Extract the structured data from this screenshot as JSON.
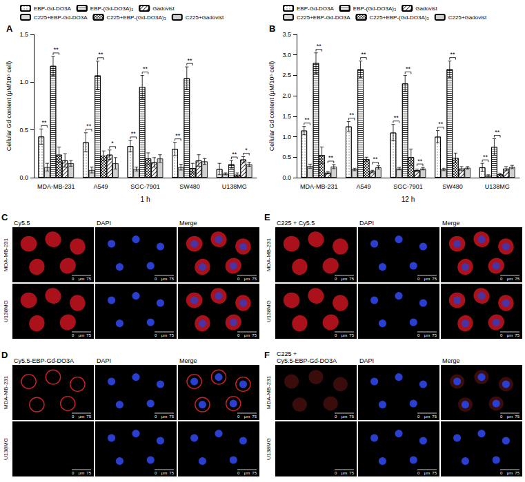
{
  "chart_data": [
    {
      "type": "bar",
      "label": "A",
      "x_label": "1 h",
      "y_label": "Cellular Gd content (μM/10⁶ cell)",
      "categories": [
        "MDA-MB-231",
        "A549",
        "SGC-7901",
        "SW480",
        "U138MG"
      ],
      "ylim": [
        0,
        1.5
      ],
      "yticks": [
        {
          "value": 0,
          "label": "0.0"
        },
        0.5,
        {
          "value": 1,
          "label": "1.0"
        },
        1.5
      ],
      "grid": false,
      "legend": "top",
      "series": [
        {
          "name": "EBP-Gd-DO3A",
          "color": "#ffffff",
          "values": [
            0.43,
            0.37,
            0.33,
            0.3,
            0.09
          ],
          "error": [
            0.08,
            0.1,
            0.06,
            0.07,
            0.06
          ]
        },
        {
          "name": "C225+EBP-Gd-DO3A",
          "color": "#d9d9d9",
          "values": [
            0.11,
            0.08,
            0.09,
            0.11,
            0.04
          ],
          "error": [
            0.04,
            0.03,
            0.02,
            0.03,
            0.01
          ]
        },
        {
          "name": "EBP-(Gd-DO3A)₃",
          "color": "#ffffff",
          "values": [
            1.17,
            1.07,
            0.95,
            1.04,
            0.14
          ],
          "error": [
            0.1,
            0.15,
            0.12,
            0.12,
            0.04
          ]
        },
        {
          "name": "C225+EBP-(Gd-DO3A)₃",
          "color": "#3a3a3a",
          "values": [
            0.24,
            0.23,
            0.2,
            0.1,
            0.03
          ],
          "error": [
            0.08,
            0.05,
            0.06,
            0.05,
            0.02
          ]
        },
        {
          "name": "Gadovist",
          "color": "#ffffff",
          "values": [
            0.18,
            0.24,
            0.16,
            0.18,
            0.19
          ],
          "error": [
            0.07,
            0.05,
            0.05,
            0.06,
            0.03
          ]
        },
        {
          "name": "C225+Gadovist",
          "color": "#d0d0d0",
          "values": [
            0.15,
            0.15,
            0.2,
            0.17,
            0.14
          ],
          "error": [
            0.03,
            0.06,
            0.04,
            0.03,
            0.02
          ]
        }
      ],
      "annotations": [
        {
          "text": "**",
          "category": "MDA-MB-231",
          "between": [
            "EBP-Gd-DO3A",
            "C225+EBP-Gd-DO3A"
          ]
        },
        {
          "text": "**",
          "category": "MDA-MB-231",
          "between": [
            "EBP-(Gd-DO3A)₃",
            "C225+EBP-(Gd-DO3A)₃"
          ]
        },
        {
          "text": "**",
          "category": "A549",
          "between": [
            "EBP-Gd-DO3A",
            "C225+EBP-Gd-DO3A"
          ]
        },
        {
          "text": "**",
          "category": "A549",
          "between": [
            "EBP-(Gd-DO3A)₃",
            "C225+EBP-(Gd-DO3A)₃"
          ]
        },
        {
          "text": "*",
          "category": "A549",
          "between": [
            "Gadovist",
            "C225+Gadovist"
          ]
        },
        {
          "text": "**",
          "category": "SGC-7901",
          "between": [
            "EBP-Gd-DO3A",
            "C225+EBP-Gd-DO3A"
          ]
        },
        {
          "text": "**",
          "category": "SGC-7901",
          "between": [
            "EBP-(Gd-DO3A)₃",
            "C225+EBP-(Gd-DO3A)₃"
          ]
        },
        {
          "text": "**",
          "category": "SW480",
          "between": [
            "EBP-Gd-DO3A",
            "C225+EBP-Gd-DO3A"
          ]
        },
        {
          "text": "**",
          "category": "SW480",
          "between": [
            "EBP-(Gd-DO3A)₃",
            "C225+EBP-(Gd-DO3A)₃"
          ]
        },
        {
          "text": "**",
          "category": "U138MG",
          "between": [
            "EBP-(Gd-DO3A)₃",
            "C225+EBP-(Gd-DO3A)₃"
          ]
        },
        {
          "text": "*",
          "category": "U138MG",
          "between": [
            "Gadovist",
            "C225+Gadovist"
          ]
        }
      ]
    },
    {
      "type": "bar",
      "label": "B",
      "x_label": "12 h",
      "y_label": "Cellular Gd content (μM/10⁶ cell)",
      "categories": [
        "MDA-MB-231",
        "A549",
        "SGC-7901",
        "SW480",
        "U138MG"
      ],
      "ylim": [
        0,
        3.5
      ],
      "yticks": [
        {
          "value": 0,
          "label": "0.0"
        },
        0.5,
        {
          "value": 1,
          "label": "1.0"
        },
        1.5,
        {
          "value": 2,
          "label": "2.0"
        },
        2.5,
        {
          "value": 3,
          "label": "3.0"
        },
        3.5
      ],
      "grid": false,
      "legend": "top",
      "series": [
        {
          "name": "EBP-Gd-DO3A",
          "color": "#ffffff",
          "values": [
            1.15,
            1.25,
            1.1,
            1.0,
            0.25
          ],
          "error": [
            0.1,
            0.12,
            0.2,
            0.15,
            0.1
          ]
        },
        {
          "name": "C225+EBP-Gd-DO3A",
          "color": "#d9d9d9",
          "values": [
            0.28,
            0.2,
            0.22,
            0.2,
            0.05
          ],
          "error": [
            0.05,
            0.03,
            0.03,
            0.03,
            0.02
          ]
        },
        {
          "name": "EBP-(Gd-DO3A)₃",
          "color": "#ffffff",
          "values": [
            2.8,
            2.65,
            2.3,
            2.65,
            0.75
          ],
          "error": [
            0.25,
            0.2,
            0.2,
            0.2,
            0.2
          ]
        },
        {
          "name": "C225+EBP-(Gd-DO3A)₃",
          "color": "#3a3a3a",
          "values": [
            0.55,
            0.45,
            0.5,
            0.48,
            0.08
          ],
          "error": [
            0.2,
            0.05,
            0.2,
            0.12,
            0.03
          ]
        },
        {
          "name": "Gadovist",
          "color": "#ffffff",
          "values": [
            0.12,
            0.15,
            0.18,
            0.22,
            0.22
          ],
          "error": [
            0.03,
            0.03,
            0.03,
            0.05,
            0.05
          ]
        },
        {
          "name": "C225+Gadovist",
          "color": "#d0d0d0",
          "values": [
            0.27,
            0.25,
            0.22,
            0.24,
            0.26
          ],
          "error": [
            0.05,
            0.04,
            0.03,
            0.03,
            0.04
          ]
        }
      ],
      "annotations": [
        {
          "text": "**",
          "category": "MDA-MB-231",
          "between": [
            "EBP-Gd-DO3A",
            "C225+EBP-Gd-DO3A"
          ]
        },
        {
          "text": "**",
          "category": "MDA-MB-231",
          "between": [
            "EBP-(Gd-DO3A)₃",
            "C225+EBP-(Gd-DO3A)₃"
          ]
        },
        {
          "text": "**",
          "category": "MDA-MB-231",
          "between": [
            "Gadovist",
            "C225+Gadovist"
          ]
        },
        {
          "text": "**",
          "category": "A549",
          "between": [
            "EBP-Gd-DO3A",
            "C225+EBP-Gd-DO3A"
          ]
        },
        {
          "text": "**",
          "category": "A549",
          "between": [
            "EBP-(Gd-DO3A)₃",
            "C225+EBP-(Gd-DO3A)₃"
          ]
        },
        {
          "text": "**",
          "category": "A549",
          "between": [
            "Gadovist",
            "C225+Gadovist"
          ]
        },
        {
          "text": "**",
          "category": "SGC-7901",
          "between": [
            "EBP-Gd-DO3A",
            "C225+EBP-Gd-DO3A"
          ]
        },
        {
          "text": "**",
          "category": "SGC-7901",
          "between": [
            "EBP-(Gd-DO3A)₃",
            "C225+EBP-(Gd-DO3A)₃"
          ]
        },
        {
          "text": "**",
          "category": "SGC-7901",
          "between": [
            "Gadovist",
            "C225+Gadovist"
          ]
        },
        {
          "text": "**",
          "category": "SW480",
          "between": [
            "EBP-Gd-DO3A",
            "C225+EBP-Gd-DO3A"
          ]
        },
        {
          "text": "**",
          "category": "SW480",
          "between": [
            "EBP-(Gd-DO3A)₃",
            "C225+EBP-(Gd-DO3A)₃"
          ]
        },
        {
          "text": "**",
          "category": "U138MG",
          "between": [
            "EBP-Gd-DO3A",
            "C225+EBP-Gd-DO3A"
          ]
        },
        {
          "text": "**",
          "category": "U138MG",
          "between": [
            "EBP-(Gd-DO3A)₃",
            "C225+EBP-(Gd-DO3A)₃"
          ]
        }
      ]
    }
  ],
  "image_panels": [
    {
      "label": "C",
      "columns": [
        "Cy5.5",
        "DAPI",
        "Merge"
      ],
      "rows": [
        "MDA-MB-231",
        "U138MG"
      ],
      "scale_bar": [
        "0",
        "μm",
        "75"
      ]
    },
    {
      "label": "D",
      "columns": [
        "Cy5.5-EBP-Gd-DO3A",
        "DAPI",
        "Merge"
      ],
      "rows": [
        "MDA-MB-231",
        "U138MG"
      ],
      "scale_bar": [
        "0",
        "μm",
        "75"
      ]
    },
    {
      "label": "E",
      "columns": [
        "C225 + Cy5.5",
        "DAPI",
        "Merge"
      ],
      "rows": [
        "MDA-MB-231",
        "U138MG"
      ],
      "scale_bar": [
        "0",
        "μm",
        "75"
      ]
    },
    {
      "label": "F",
      "columns": [
        "C225 + Cy5.5-EBP-Gd-DO3A",
        "DAPI",
        "Merge"
      ],
      "rows": [
        "MDA-MB-231",
        "U138MG"
      ],
      "scale_bar": [
        "0",
        "μm",
        "75"
      ]
    }
  ]
}
